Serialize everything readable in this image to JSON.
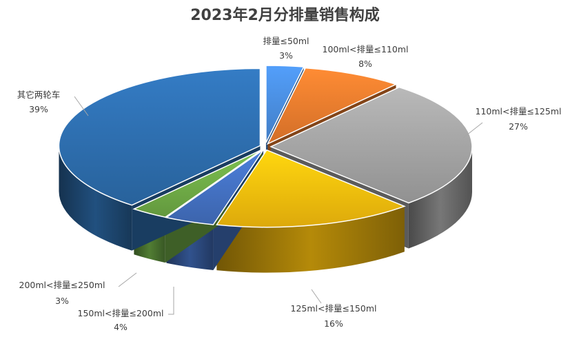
{
  "chart_data": {
    "type": "pie",
    "title": "2023年2月分排量销售构成",
    "slices": [
      {
        "label": "排量≤50ml",
        "percent": 3,
        "value_label": "3%",
        "color": "#4a8ee0"
      },
      {
        "label": "100ml<排量≤110ml",
        "percent": 8,
        "value_label": "8%",
        "color": "#ef7d2e"
      },
      {
        "label": "110ml<排量≤125ml",
        "percent": 27,
        "value_label": "27%",
        "color": "#a5a5a5"
      },
      {
        "label": "125ml<排量≤150ml",
        "percent": 16,
        "value_label": "16%",
        "color": "#fbc00d"
      },
      {
        "label": "150ml<排量≤200ml",
        "percent": 4,
        "value_label": "4%",
        "color": "#4472c4"
      },
      {
        "label": "200ml<排量≤250ml",
        "percent": 3,
        "value_label": "3%",
        "color": "#70ad47"
      },
      {
        "label": "其它两轮车",
        "percent": 39,
        "value_label": "39%",
        "color": "#2e6fb0"
      }
    ],
    "legend": "none",
    "style": "3d-exploded-pie"
  }
}
